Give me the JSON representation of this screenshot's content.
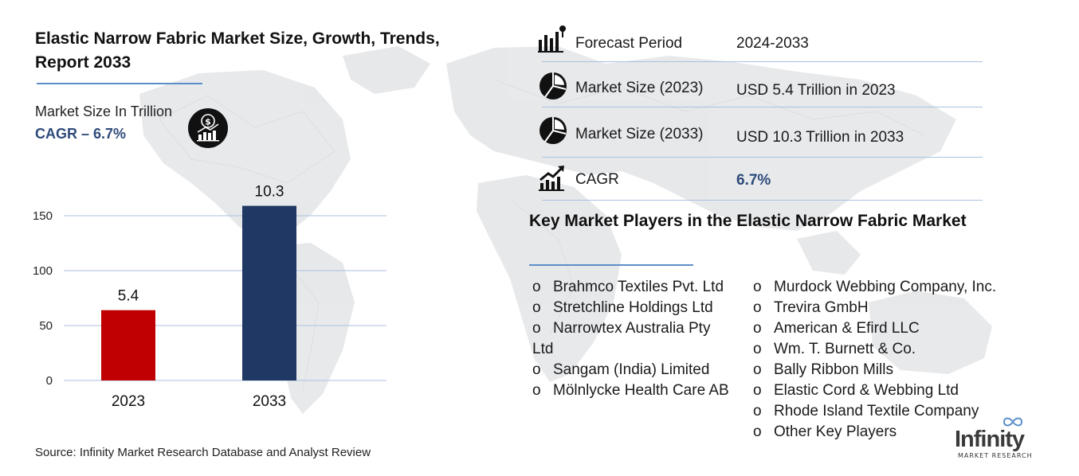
{
  "title": "Elastic Narrow Fabric Market Size, Growth, Trends, Report 2033",
  "subtitle": "Market Size In Trillion",
  "cagr_text": "CAGR – 6.7%",
  "source": "Source: Infinity Market Research Database and Analyst Review",
  "icons": {
    "dollar": "dollar-growth-icon",
    "forecast": "bar-chart-icon",
    "market_size": "pie-chart-icon",
    "cagr": "trend-up-icon"
  },
  "colors": {
    "bar_2023": "#c00000",
    "bar_2033": "#1f3864",
    "accent": "#2e4a7a",
    "rule": "#5b8fc9"
  },
  "chart_data": {
    "type": "bar",
    "categories": [
      "2023",
      "2033"
    ],
    "values": [
      5.4,
      10.3
    ],
    "data_labels": [
      "5.4",
      "10.3"
    ],
    "bar_heights_axis_units": [
      64,
      159
    ],
    "yticks": [
      "0",
      "50",
      "100",
      "150"
    ],
    "ylim": [
      0,
      150
    ],
    "grid": true,
    "legend": "none"
  },
  "info_rows": [
    {
      "label": "Forecast Period",
      "value": "2024-2033"
    },
    {
      "label": "Market Size (2023)",
      "value": "USD 5.4 Trillion in 2023"
    },
    {
      "label": "Market Size (2033)",
      "value": "USD 10.3 Trillion in 2033"
    },
    {
      "label": "CAGR",
      "value": "6.7%"
    }
  ],
  "players_title": "Key Market Players in the Elastic Narrow Fabric Market",
  "bullet": "o",
  "players_left": [
    "Brahmco Textiles Pvt. Ltd",
    "Stretchline Holdings Ltd",
    "Narrowtex Australia Pty Ltd",
    "Sangam (India) Limited",
    "Mölnlycke Health Care AB"
  ],
  "players_right": [
    "Murdock Webbing Company, Inc.",
    "Trevira GmbH",
    "American & Efird LLC",
    "Wm. T. Burnett & Co.",
    "Bally Ribbon Mills",
    "Elastic Cord & Webbing Ltd",
    "Rhode Island Textile Company",
    "Other Key Players"
  ],
  "logo": {
    "word": "Infinity",
    "sub": "MARKET RESEARCH"
  }
}
